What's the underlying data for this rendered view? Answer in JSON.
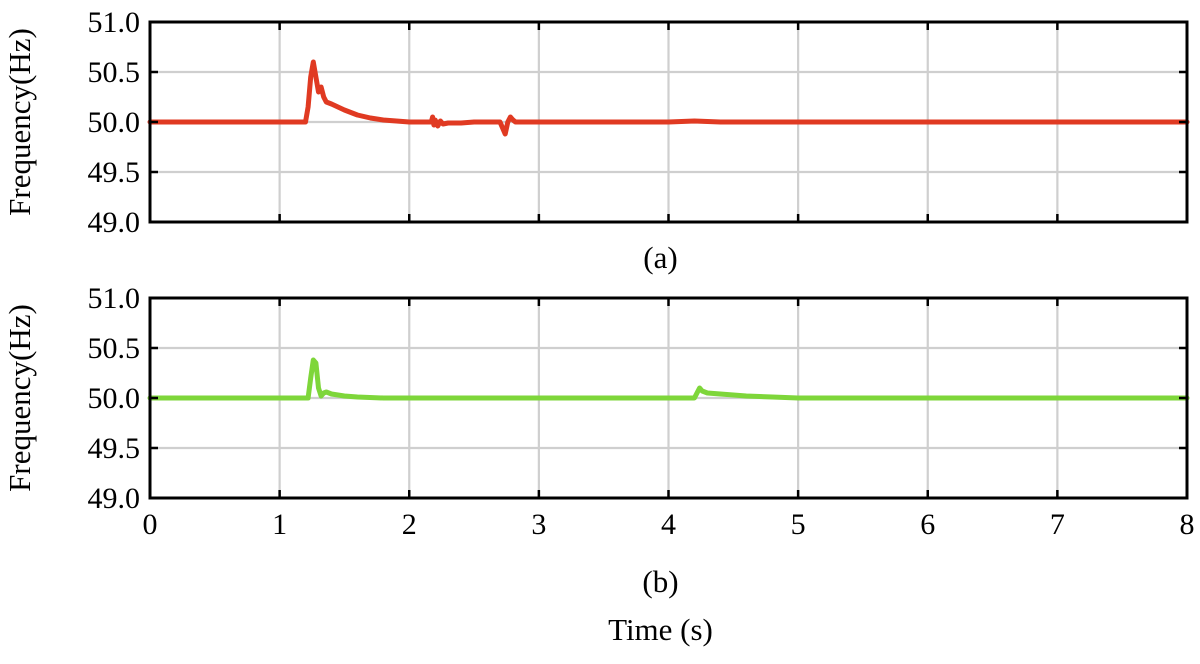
{
  "chart_data": [
    {
      "type": "line",
      "panel_label": "(a)",
      "ylabel": "Frequency(Hz)",
      "xlabel": "",
      "xlim": [
        0,
        8
      ],
      "ylim": [
        49.0,
        51.0
      ],
      "xticks": [
        0,
        1,
        2,
        3,
        4,
        5,
        6,
        7,
        8
      ],
      "yticks": [
        "51.0",
        "50.5",
        "50.0",
        "49.5",
        "49.0"
      ],
      "grid": true,
      "series": [
        {
          "color": "#e03a22",
          "x": [
            0,
            1.2,
            1.22,
            1.24,
            1.26,
            1.28,
            1.3,
            1.32,
            1.34,
            1.36,
            1.4,
            1.5,
            1.6,
            1.7,
            1.8,
            1.9,
            2.0,
            2.1,
            2.17,
            2.18,
            2.19,
            2.2,
            2.22,
            2.24,
            2.26,
            2.3,
            2.4,
            2.5,
            2.6,
            2.7,
            2.74,
            2.76,
            2.78,
            2.8,
            2.82,
            2.9,
            3.0,
            4.0,
            4.2,
            4.4,
            5.0,
            6.0,
            7.0,
            8.0
          ],
          "y": [
            50.0,
            50.0,
            50.15,
            50.45,
            50.6,
            50.45,
            50.3,
            50.35,
            50.25,
            50.2,
            50.18,
            50.12,
            50.07,
            50.04,
            50.02,
            50.01,
            50.0,
            50.0,
            50.0,
            50.05,
            49.97,
            50.02,
            49.96,
            50.01,
            49.98,
            49.99,
            49.99,
            50.0,
            50.0,
            50.0,
            49.88,
            50.0,
            50.05,
            50.02,
            50.0,
            50.0,
            50.0,
            50.0,
            50.01,
            50.0,
            50.0,
            50.0,
            50.0,
            50.0
          ]
        }
      ]
    },
    {
      "type": "line",
      "panel_label": "(b)",
      "ylabel": "Frequency(Hz)",
      "xlabel": "Time (s)",
      "xlim": [
        0,
        8
      ],
      "ylim": [
        49.0,
        51.0
      ],
      "xticks": [
        0,
        1,
        2,
        3,
        4,
        5,
        6,
        7,
        8
      ],
      "yticks": [
        "51.0",
        "50.5",
        "50.0",
        "49.5",
        "49.0"
      ],
      "grid": true,
      "series": [
        {
          "color": "#7ed63a",
          "x": [
            0,
            1.22,
            1.24,
            1.26,
            1.28,
            1.3,
            1.32,
            1.34,
            1.36,
            1.38,
            1.4,
            1.5,
            1.6,
            1.8,
            2.0,
            3.0,
            4.0,
            4.2,
            4.22,
            4.24,
            4.26,
            4.3,
            4.4,
            4.6,
            4.8,
            5.0,
            6.0,
            7.0,
            8.0
          ],
          "y": [
            50.0,
            50.0,
            50.2,
            50.38,
            50.35,
            50.1,
            50.02,
            50.05,
            50.06,
            50.05,
            50.04,
            50.02,
            50.01,
            50.0,
            50.0,
            50.0,
            50.0,
            50.0,
            50.05,
            50.1,
            50.07,
            50.05,
            50.04,
            50.02,
            50.01,
            50.0,
            50.0,
            50.0,
            50.0
          ]
        }
      ]
    }
  ]
}
